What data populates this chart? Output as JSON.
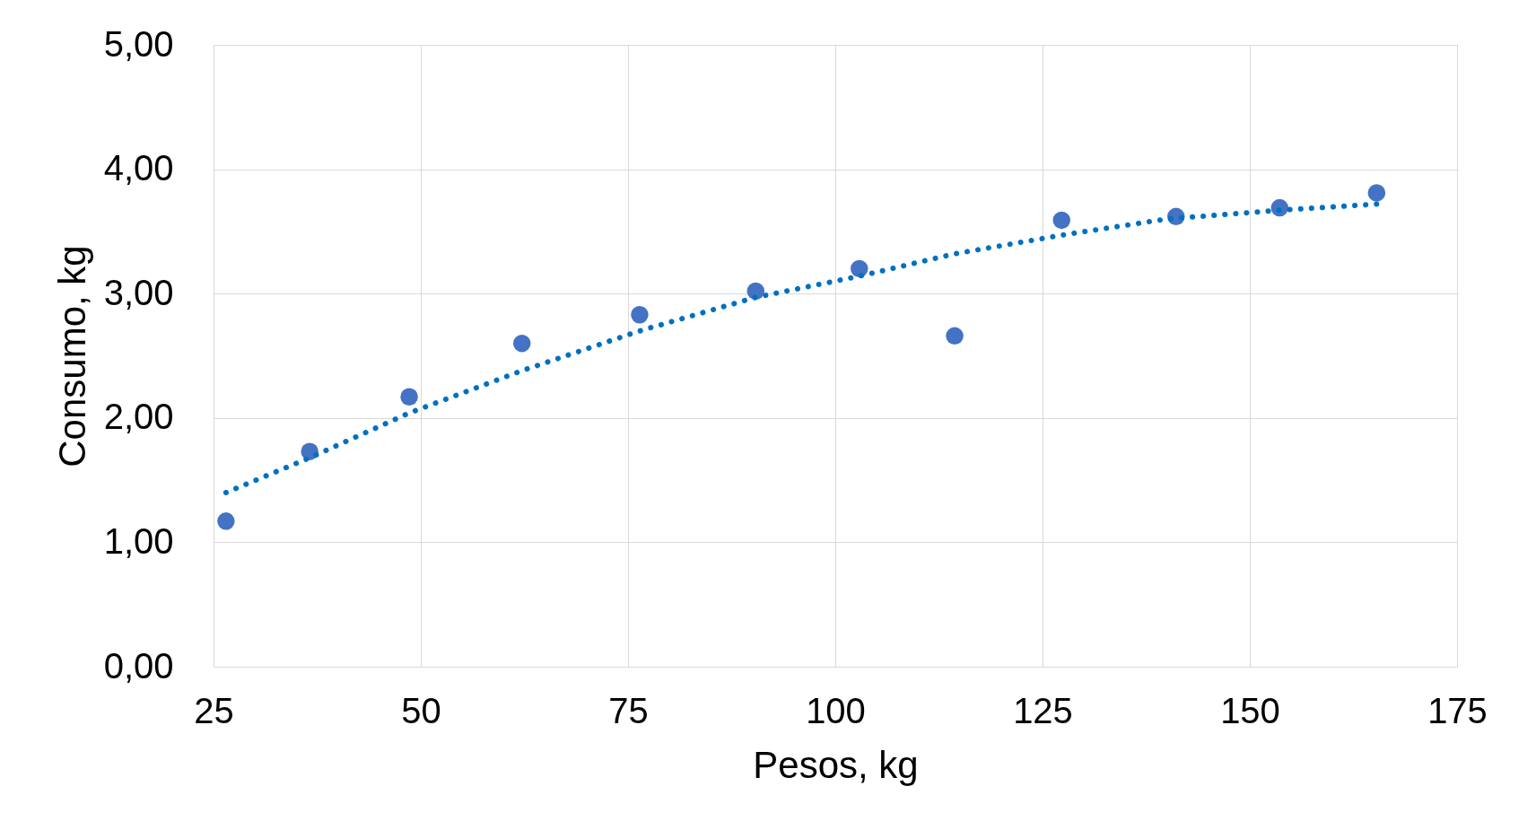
{
  "chart_data": {
    "type": "scatter",
    "xlabel": "Pesos, kg",
    "ylabel": "Consumo, kg",
    "series": [
      {
        "color": "#4472c4",
        "marker": "circle",
        "x": [
          26.5,
          36.6,
          48.6,
          62.2,
          76.4,
          90.4,
          102.9,
          114.4,
          127.3,
          141.1,
          153.6,
          165.3
        ],
        "values": [
          1.17,
          1.73,
          2.17,
          2.6,
          2.83,
          3.02,
          3.2,
          2.66,
          3.59,
          3.62,
          3.69,
          3.81
        ]
      },
      {
        "type": "line",
        "color": "#0070c0",
        "line_style": "dotted",
        "x": [
          26.5,
          36.6,
          48.6,
          62.2,
          76.4,
          90.4,
          102.9,
          114.4,
          127.3,
          140.0,
          153.6,
          165.3
        ],
        "values": [
          1.4,
          1.68,
          2.04,
          2.38,
          2.7,
          2.97,
          3.14,
          3.32,
          3.47,
          3.6,
          3.67,
          3.72
        ]
      }
    ],
    "xlim": [
      25,
      175
    ],
    "xticks": [
      25,
      50,
      75,
      100,
      125,
      150,
      175
    ],
    "ylim": [
      0,
      5
    ],
    "yticks": [
      {
        "value": 0,
        "label": "0,00"
      },
      {
        "value": 1,
        "label": "1,00"
      },
      {
        "value": 2,
        "label": "2,00"
      },
      {
        "value": 3,
        "label": "3,00"
      },
      {
        "value": 4,
        "label": "4,00"
      },
      {
        "value": 5,
        "label": "5,00"
      }
    ],
    "grid": true
  }
}
